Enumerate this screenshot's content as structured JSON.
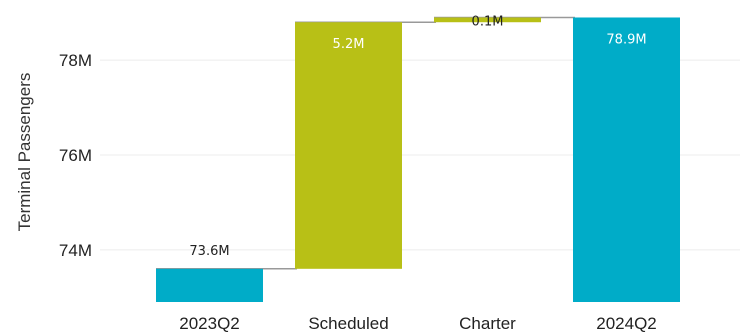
{
  "chart_data": {
    "type": "bar",
    "subtype": "waterfall",
    "ylabel": "Terminal Passengers",
    "ylim": [
      72.9,
      79.1
    ],
    "yticks": [
      {
        "value": 74,
        "label": "74M"
      },
      {
        "value": 76,
        "label": "76M"
      },
      {
        "value": 78,
        "label": "78M"
      }
    ],
    "grid": true,
    "legend": "none",
    "bars": [
      {
        "category": "2023Q2",
        "kind": "total",
        "start": 0,
        "end": 73.6,
        "label": "73.6M",
        "color": "#00acc8"
      },
      {
        "category": "Scheduled",
        "kind": "change",
        "start": 73.6,
        "end": 78.8,
        "label": "5.2M",
        "color": "#b8c016"
      },
      {
        "category": "Charter",
        "kind": "change",
        "start": 78.8,
        "end": 78.9,
        "label": "0.1M",
        "color": "#b8c016"
      },
      {
        "category": "2024Q2",
        "kind": "total",
        "start": 0,
        "end": 78.9,
        "label": "78.9M",
        "color": "#00acc8"
      }
    ]
  }
}
